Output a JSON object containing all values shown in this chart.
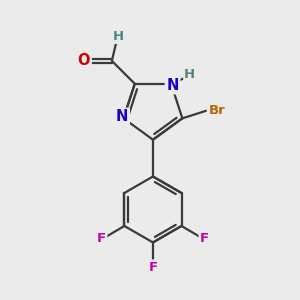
{
  "bg_color": "#ebebeb",
  "bond_color": "#3a3a3a",
  "bond_width": 1.6,
  "atom_labels": {
    "O": {
      "color": "#cc0000",
      "fontsize": 10.5,
      "fontweight": "bold"
    },
    "H_ald": {
      "color": "#4a8585",
      "fontsize": 9.5,
      "fontweight": "bold"
    },
    "N": {
      "color": "#1a00cc",
      "fontsize": 10.5,
      "fontweight": "bold"
    },
    "H_N": {
      "color": "#4a8585",
      "fontsize": 9.5,
      "fontweight": "bold"
    },
    "Br": {
      "color": "#b86800",
      "fontsize": 9.5,
      "fontweight": "bold"
    },
    "F": {
      "color": "#cc00aa",
      "fontsize": 9.5,
      "fontweight": "bold"
    }
  },
  "figsize": [
    3.0,
    3.0
  ],
  "dpi": 100
}
